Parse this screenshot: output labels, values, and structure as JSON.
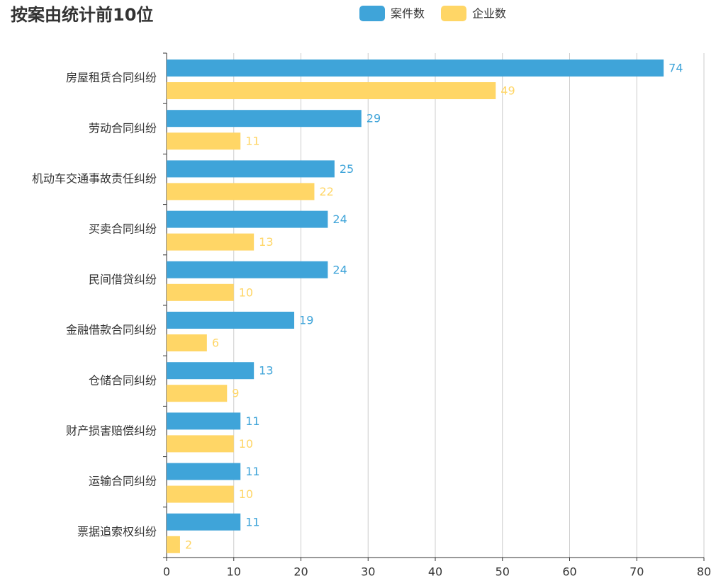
{
  "chart_data": {
    "type": "bar",
    "orientation": "horizontal",
    "title": "按案由统计前10位",
    "categories": [
      "房屋租赁合同纠纷",
      "劳动合同纠纷",
      "机动车交通事故责任纠纷",
      "买卖合同纠纷",
      "民间借贷纠纷",
      "金融借款合同纠纷",
      "仓储合同纠纷",
      "财产损害赔偿纠纷",
      "运输合同纠纷",
      "票据追索权纠纷"
    ],
    "series": [
      {
        "name": "案件数",
        "color": "#3fa4d9",
        "values": [
          74,
          29,
          25,
          24,
          24,
          19,
          13,
          11,
          11,
          11
        ]
      },
      {
        "name": "企业数",
        "color": "#ffd666",
        "values": [
          49,
          11,
          22,
          13,
          10,
          6,
          9,
          10,
          10,
          2
        ]
      }
    ],
    "xlim": [
      0,
      80
    ],
    "xticks": [
      0,
      10,
      20,
      30,
      40,
      50,
      60,
      70,
      80
    ],
    "grid": true,
    "legend": "top",
    "data_labels": true
  }
}
